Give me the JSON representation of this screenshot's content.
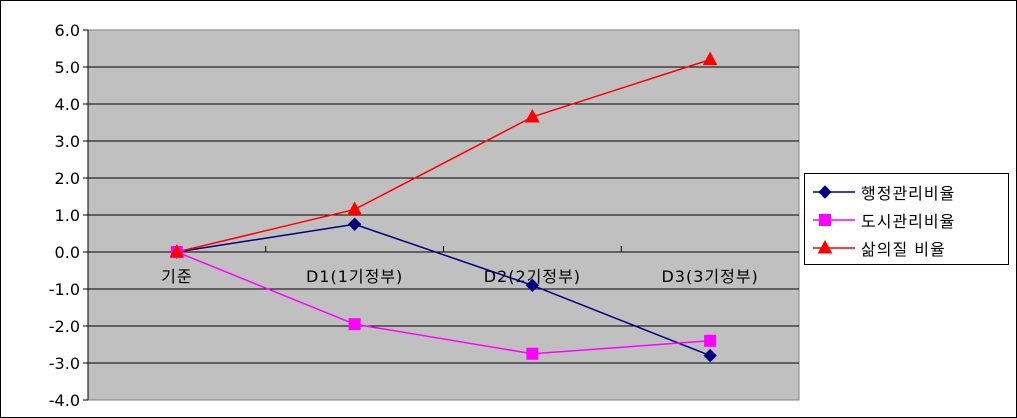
{
  "chart_data": {
    "type": "line",
    "title": "",
    "xlabel": "",
    "ylabel": "",
    "categories": [
      "기준",
      "D1(1기정부)",
      "D2(2기정부)",
      "D3(3기정부)"
    ],
    "series": [
      {
        "name": "행정관리비율",
        "values": [
          0.0,
          0.75,
          -0.9,
          -2.8
        ],
        "color": "#000080",
        "marker": "diamond"
      },
      {
        "name": "도시관리비율",
        "values": [
          0.0,
          -1.95,
          -2.75,
          -2.4
        ],
        "color": "#FF00FF",
        "marker": "square"
      },
      {
        "name": "삶의질 비율",
        "values": [
          0.0,
          1.15,
          3.65,
          5.2
        ],
        "color": "#FF0000",
        "marker": "triangle"
      }
    ],
    "ylim": [
      -4.0,
      6.0
    ],
    "yticks": [
      "6.0",
      "5.0",
      "4.0",
      "3.0",
      "2.0",
      "1.0",
      "0.0",
      "-1.0",
      "-2.0",
      "-3.0",
      "-4.0"
    ],
    "grid": true,
    "plot_background": "#C0C0C0",
    "legend_position": "right"
  }
}
